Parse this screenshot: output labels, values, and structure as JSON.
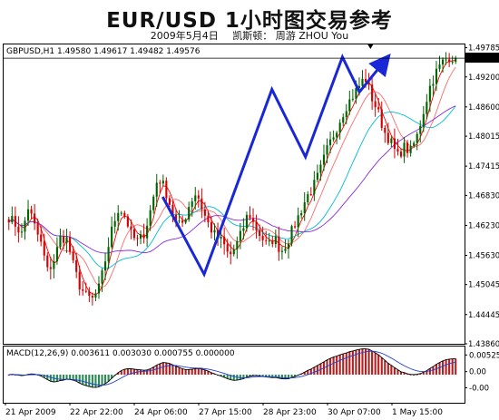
{
  "header": {
    "title": "EUR/USD 1小时图交易参考",
    "date": "2009年5月4日",
    "author": "凯斯顿： 周游 ZHOU You"
  },
  "chart_data": {
    "type": "candlestick",
    "instrument_label": "GBPUSD,H1 1.49580 1.49617 1.49482 1.49576",
    "current_price": "1.49576",
    "price_axis": {
      "ylim": [
        1.4386,
        1.4985
      ],
      "ticks": [
        "1.49785",
        "1.49200",
        "1.48600",
        "1.48015",
        "1.47415",
        "1.46830",
        "1.46230",
        "1.45630",
        "1.45045",
        "1.44445",
        "1.43860"
      ]
    },
    "x_ticks": [
      "21 Apr 2009",
      "22 Apr 22:00",
      "24 Apr 06:00",
      "27 Apr 15:00",
      "28 Apr 23:00",
      "30 Apr 07:00",
      "1 May 15:00"
    ],
    "close_path": [
      1.464,
      1.4625,
      1.4605,
      1.466,
      1.462,
      1.4585,
      1.453,
      1.4555,
      1.46,
      1.4595,
      1.454,
      1.45,
      1.448,
      1.4475,
      1.45,
      1.456,
      1.462,
      1.466,
      1.464,
      1.46,
      1.459,
      1.461,
      1.466,
      1.472,
      1.47,
      1.466,
      1.462,
      1.463,
      1.467,
      1.469,
      1.465,
      1.462,
      1.46,
      1.459,
      1.456,
      1.458,
      1.461,
      1.465,
      1.462,
      1.46,
      1.458,
      1.46,
      1.457,
      1.459,
      1.462,
      1.465,
      1.468,
      1.47,
      1.473,
      1.477,
      1.48,
      1.483,
      1.486,
      1.488,
      1.49,
      1.492,
      1.488,
      1.485,
      1.481,
      1.479,
      1.476,
      1.478,
      1.477,
      1.48,
      1.485,
      1.49,
      1.493,
      1.495,
      1.496,
      1.4958
    ],
    "projection_lines": [
      [
        [
          1.468,
          0.345
        ],
        [
          1.4525,
          0.435
        ],
        [
          1.4895,
          0.582
        ],
        [
          1.476,
          0.655
        ],
        [
          1.496,
          0.735
        ],
        [
          1.489,
          0.772
        ],
        [
          1.495,
          0.825
        ]
      ]
    ],
    "macd": {
      "label": "MACD(12,26,9) 0.003611 0.003030 0.000755 0.000000",
      "ticks": [
        "0.00525",
        "0.00",
        "-0.00"
      ],
      "ylim": [
        -0.0075,
        0.0075
      ]
    },
    "colors": {
      "up_candle": "#006400",
      "down_candle": "#d40000",
      "ma_fast": "#ff0000",
      "ma_mid": "#ff6a6a",
      "ma_slow": "#00bcd4",
      "ma_long": "#8a2be2",
      "projection": "#1a27d6",
      "macd_pos": "#b22222",
      "macd_neg": "#2e8b57",
      "macd_line": "#000000",
      "signal_line": "#1e3fd6"
    }
  }
}
